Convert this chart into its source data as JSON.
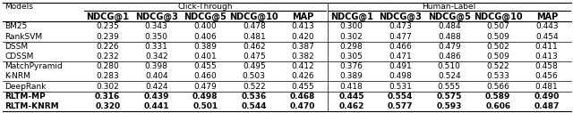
{
  "col_groups": [
    {
      "label": "Click-Through",
      "cols": [
        "NDCG@1",
        "NDCG@3",
        "NDCG@5",
        "NDCG@10",
        "MAP"
      ]
    },
    {
      "label": "Human-Label",
      "cols": [
        "NDCG@1",
        "NDCG@3",
        "NDCG@5",
        "NDCG@10",
        "MAP"
      ]
    }
  ],
  "models": [
    "BM25",
    "RankSVM",
    "DSSM",
    "CDSSM",
    "MatchPyramid",
    "K-NRM",
    "DeepRank",
    "RLTM-MP",
    "RLTM-KNRM"
  ],
  "data": [
    [
      0.235,
      0.343,
      0.4,
      0.478,
      0.413,
      0.3,
      0.473,
      0.484,
      0.507,
      0.443
    ],
    [
      0.239,
      0.35,
      0.406,
      0.481,
      0.42,
      0.302,
      0.477,
      0.488,
      0.509,
      0.454
    ],
    [
      0.226,
      0.331,
      0.389,
      0.462,
      0.387,
      0.298,
      0.466,
      0.479,
      0.502,
      0.411
    ],
    [
      0.232,
      0.342,
      0.401,
      0.475,
      0.382,
      0.305,
      0.471,
      0.486,
      0.509,
      0.413
    ],
    [
      0.28,
      0.398,
      0.455,
      0.495,
      0.412,
      0.376,
      0.491,
      0.51,
      0.522,
      0.458
    ],
    [
      0.283,
      0.404,
      0.46,
      0.503,
      0.426,
      0.389,
      0.498,
      0.524,
      0.533,
      0.456
    ],
    [
      0.302,
      0.424,
      0.479,
      0.522,
      0.455,
      0.418,
      0.531,
      0.555,
      0.566,
      0.481
    ],
    [
      0.316,
      0.439,
      0.498,
      0.536,
      0.468,
      0.445,
      0.554,
      0.575,
      0.589,
      0.49
    ],
    [
      0.32,
      0.441,
      0.501,
      0.544,
      0.47,
      0.462,
      0.577,
      0.593,
      0.606,
      0.487
    ]
  ],
  "hlines_after": [
    1,
    3,
    5,
    6,
    8
  ],
  "bold_rows": [
    7,
    8
  ],
  "background_color": "#ffffff",
  "font_size": 6.5,
  "col_header_font_size": 7.0
}
